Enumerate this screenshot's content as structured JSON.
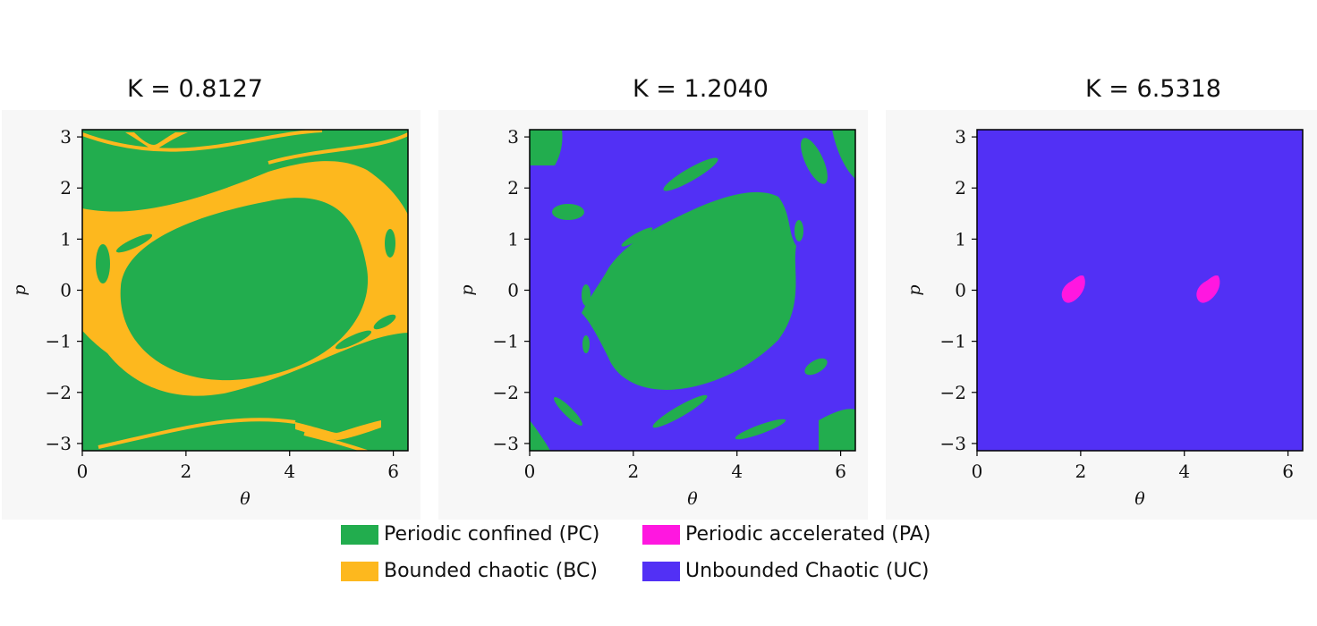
{
  "chart_data": [
    {
      "type": "heatmap",
      "title": "K = 0.8127",
      "xlabel": "θ",
      "ylabel": "p",
      "xlim": [
        0,
        6.2832
      ],
      "ylim": [
        -3.1416,
        3.1416
      ],
      "xticks": [
        "0",
        "2",
        "4",
        "6"
      ],
      "yticks": [
        "3",
        "2",
        "1",
        "0",
        "−1",
        "−2",
        "−3"
      ],
      "background_class": "PC",
      "regions_class": "BC"
    },
    {
      "type": "heatmap",
      "title": "K = 1.2040",
      "xlabel": "θ",
      "ylabel": "p",
      "xlim": [
        0,
        6.2832
      ],
      "ylim": [
        -3.1416,
        3.1416
      ],
      "xticks": [
        "0",
        "2",
        "4",
        "6"
      ],
      "yticks": [
        "3",
        "2",
        "1",
        "0",
        "−1",
        "−2",
        "−3"
      ],
      "background_class": "UC",
      "regions_class": "PC"
    },
    {
      "type": "heatmap",
      "title": "K = 6.5318",
      "xlabel": "θ",
      "ylabel": "p",
      "xlim": [
        0,
        6.2832
      ],
      "ylim": [
        -3.1416,
        3.1416
      ],
      "xticks": [
        "0",
        "2",
        "4",
        "6"
      ],
      "yticks": [
        "3",
        "2",
        "1",
        "0",
        "−1",
        "−2",
        "−3"
      ],
      "background_class": "UC",
      "regions_class": "PA",
      "islands": [
        {
          "theta": 1.85,
          "p": 0.0
        },
        {
          "theta": 4.45,
          "p": 0.0
        }
      ]
    }
  ],
  "legend": [
    {
      "key": "PC",
      "label": "Periodic confined (PC)",
      "color": "#22ad4e"
    },
    {
      "key": "PA",
      "label": "Periodic accelerated (PA)",
      "color": "#ff17e0"
    },
    {
      "key": "BC",
      "label": "Bounded chaotic (BC)",
      "color": "#fdb81e"
    },
    {
      "key": "UC",
      "label": "Unbounded Chaotic (UC)",
      "color": "#5230f5"
    }
  ]
}
